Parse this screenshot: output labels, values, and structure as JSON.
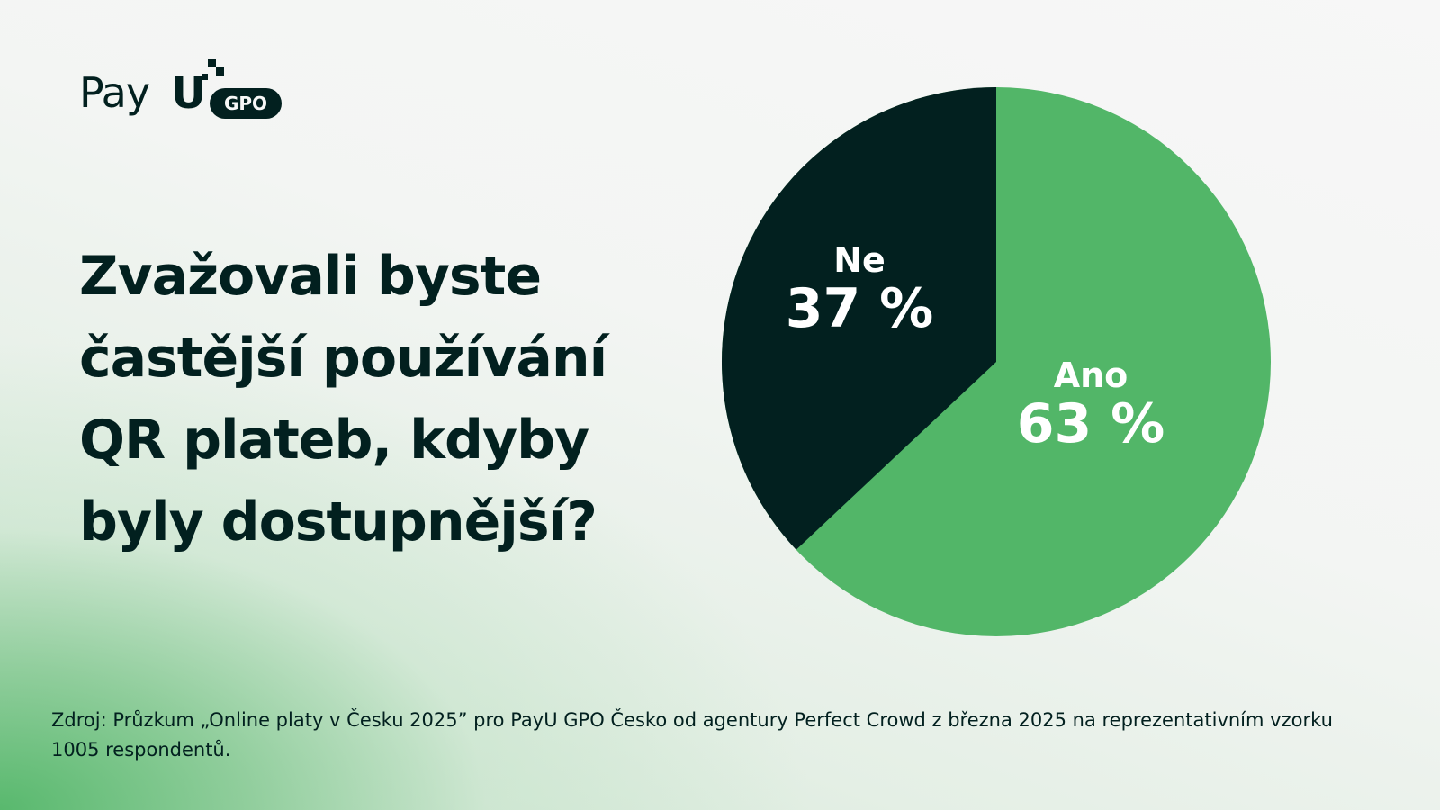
{
  "brand": {
    "name_text": "Pay",
    "name_u": "U",
    "badge": "GPO",
    "colors": {
      "dark": "#02201f",
      "green": "#52b668",
      "background": "#f7f7f7"
    }
  },
  "question": "Zvažovali byste častější používání QR plateb, kdyby byly dostupnější?",
  "slices": [
    {
      "label": "Ne",
      "value_text": "37 %"
    },
    {
      "label": "Ano",
      "value_text": "63 %"
    }
  ],
  "source": "Zdroj: Průzkum „Online platy v Česku 2025” pro PayU GPO Česko od agentury Perfect Crowd z března 2025 na reprezentativním vzorku 1005 respondentů.",
  "chart_data": {
    "type": "pie",
    "title": "Zvažovali byste častější používání QR plateb, kdyby byly dostupnější?",
    "categories": [
      "Ano",
      "Ne"
    ],
    "values": [
      63,
      37
    ],
    "unit": "%",
    "colors": [
      "#52b668",
      "#02201f"
    ],
    "start_angle": "12 o'clock; Ne drawn counter-clockwise, Ano clockwise",
    "legend": "none (labels inside slices)",
    "source": "Zdroj: Průzkum „Online platy v Česku 2025” pro PayU GPO Česko od agentury Perfect Crowd z března 2025 na reprezentativním vzorku 1005 respondentů."
  }
}
